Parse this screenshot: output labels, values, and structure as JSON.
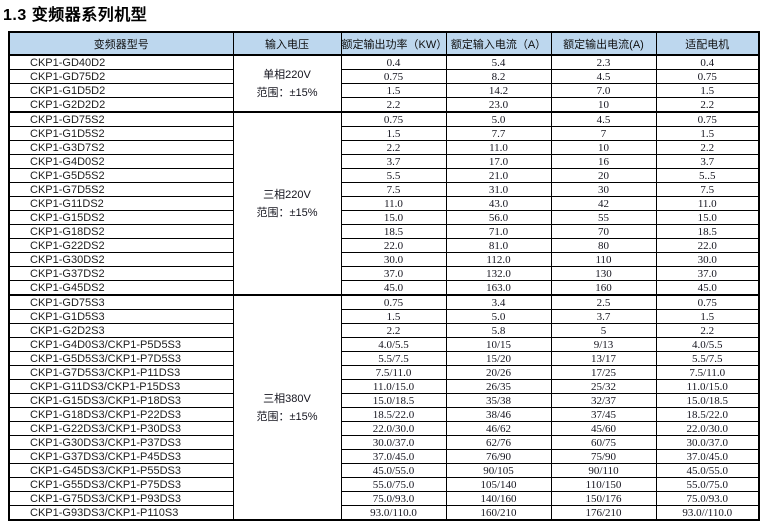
{
  "page": {
    "title": "1.3 变频器系列机型"
  },
  "colors": {
    "header_bg": "#bdd7ee",
    "border": "#000000"
  },
  "table": {
    "headers": [
      "变频器型号",
      "输入电压",
      "额定输出功率（KW）",
      "额定输入电流（A）",
      "额定输出电流(A)",
      "适配电机"
    ],
    "groups": [
      {
        "voltage": "单相220V",
        "range": "范围：±15%",
        "rows": [
          {
            "model": "CKP1-GD40D2",
            "power": "0.4",
            "input_current": "5.4",
            "output_current": "2.3",
            "motor": "0.4"
          },
          {
            "model": "CKP1-GD75D2",
            "power": "0.75",
            "input_current": "8.2",
            "output_current": "4.5",
            "motor": "0.75"
          },
          {
            "model": "CKP1-G1D5D2",
            "power": "1.5",
            "input_current": "14.2",
            "output_current": "7.0",
            "motor": "1.5"
          },
          {
            "model": "CKP1-G2D2D2",
            "power": "2.2",
            "input_current": "23.0",
            "output_current": "10",
            "motor": "2.2"
          }
        ]
      },
      {
        "voltage": "三相220V",
        "range": "范围：±15%",
        "rows": [
          {
            "model": "CKP1-GD75S2",
            "power": "0.75",
            "input_current": "5.0",
            "output_current": "4.5",
            "motor": "0.75"
          },
          {
            "model": "CKP1-G1D5S2",
            "power": "1.5",
            "input_current": "7.7",
            "output_current": "7",
            "motor": "1.5"
          },
          {
            "model": "CKP1-G3D7S2",
            "power": "2.2",
            "input_current": "11.0",
            "output_current": "10",
            "motor": "2.2"
          },
          {
            "model": "CKP1-G4D0S2",
            "power": "3.7",
            "input_current": "17.0",
            "output_current": "16",
            "motor": "3.7"
          },
          {
            "model": "CKP1-G5D5S2",
            "power": "5.5",
            "input_current": "21.0",
            "output_current": "20",
            "motor": "5..5"
          },
          {
            "model": "CKP1-G7D5S2",
            "power": "7.5",
            "input_current": "31.0",
            "output_current": "30",
            "motor": "7.5"
          },
          {
            "model": "CKP1-G11DS2",
            "power": "11.0",
            "input_current": "43.0",
            "output_current": "42",
            "motor": "11.0"
          },
          {
            "model": "CKP1-G15DS2",
            "power": "15.0",
            "input_current": "56.0",
            "output_current": "55",
            "motor": "15.0"
          },
          {
            "model": "CKP1-G18DS2",
            "power": "18.5",
            "input_current": "71.0",
            "output_current": "70",
            "motor": "18.5"
          },
          {
            "model": "CKP1-G22DS2",
            "power": "22.0",
            "input_current": "81.0",
            "output_current": "80",
            "motor": "22.0"
          },
          {
            "model": "CKP1-G30DS2",
            "power": "30.0",
            "input_current": "112.0",
            "output_current": "110",
            "motor": "30.0"
          },
          {
            "model": "CKP1-G37DS2",
            "power": "37.0",
            "input_current": "132.0",
            "output_current": "130",
            "motor": "37.0"
          },
          {
            "model": "CKP1-G45DS2",
            "power": "45.0",
            "input_current": "163.0",
            "output_current": "160",
            "motor": "45.0"
          }
        ]
      },
      {
        "voltage": "三相380V",
        "range": "范围：±15%",
        "rows": [
          {
            "model": "CKP1-GD75S3",
            "power": "0.75",
            "input_current": "3.4",
            "output_current": "2.5",
            "motor": "0.75"
          },
          {
            "model": "CKP1-G1D5S3",
            "power": "1.5",
            "input_current": "5.0",
            "output_current": "3.7",
            "motor": "1.5"
          },
          {
            "model": "CKP1-G2D2S3",
            "power": "2.2",
            "input_current": "5.8",
            "output_current": "5",
            "motor": "2.2"
          },
          {
            "model": "CKP1-G4D0S3/CKP1-P5D5S3",
            "power": "4.0/5.5",
            "input_current": "10/15",
            "output_current": "9/13",
            "motor": "4.0/5.5"
          },
          {
            "model": "CKP1-G5D5S3/CKP1-P7D5S3",
            "power": "5.5/7.5",
            "input_current": "15/20",
            "output_current": "13/17",
            "motor": "5.5/7.5"
          },
          {
            "model": "CKP1-G7D5S3/CKP1-P11DS3",
            "power": "7.5/11.0",
            "input_current": "20/26",
            "output_current": "17/25",
            "motor": "7.5/11.0"
          },
          {
            "model": "CKP1-G11DS3/CKP1-P15DS3",
            "power": "11.0/15.0",
            "input_current": "26/35",
            "output_current": "25/32",
            "motor": "11.0/15.0"
          },
          {
            "model": "CKP1-G15DS3/CKP1-P18DS3",
            "power": "15.0/18.5",
            "input_current": "35/38",
            "output_current": "32/37",
            "motor": "15.0/18.5"
          },
          {
            "model": "CKP1-G18DS3/CKP1-P22DS3",
            "power": "18.5/22.0",
            "input_current": "38/46",
            "output_current": "37/45",
            "motor": "18.5/22.0"
          },
          {
            "model": "CKP1-G22DS3/CKP1-P30DS3",
            "power": "22.0/30.0",
            "input_current": "46/62",
            "output_current": "45/60",
            "motor": "22.0/30.0"
          },
          {
            "model": "CKP1-G30DS3/CKP1-P37DS3",
            "power": "30.0/37.0",
            "input_current": "62/76",
            "output_current": "60/75",
            "motor": "30.0/37.0"
          },
          {
            "model": "CKP1-G37DS3/CKP1-P45DS3",
            "power": "37.0/45.0",
            "input_current": "76/90",
            "output_current": "75/90",
            "motor": "37.0/45.0"
          },
          {
            "model": "CKP1-G45DS3/CKP1-P55DS3",
            "power": "45.0/55.0",
            "input_current": "90/105",
            "output_current": "90/110",
            "motor": "45.0/55.0"
          },
          {
            "model": "CKP1-G55DS3/CKP1-P75DS3",
            "power": "55.0/75.0",
            "input_current": "105/140",
            "output_current": "110/150",
            "motor": "55.0/75.0"
          },
          {
            "model": "CKP1-G75DS3/CKP1-P93DS3",
            "power": "75.0/93.0",
            "input_current": "140/160",
            "output_current": "150/176",
            "motor": "75.0/93.0"
          },
          {
            "model": "CKP1-G93DS3/CKP1-P110S3",
            "power": "93.0/110.0",
            "input_current": "160/210",
            "output_current": "176/210",
            "motor": "93.0//110.0"
          }
        ]
      }
    ]
  }
}
